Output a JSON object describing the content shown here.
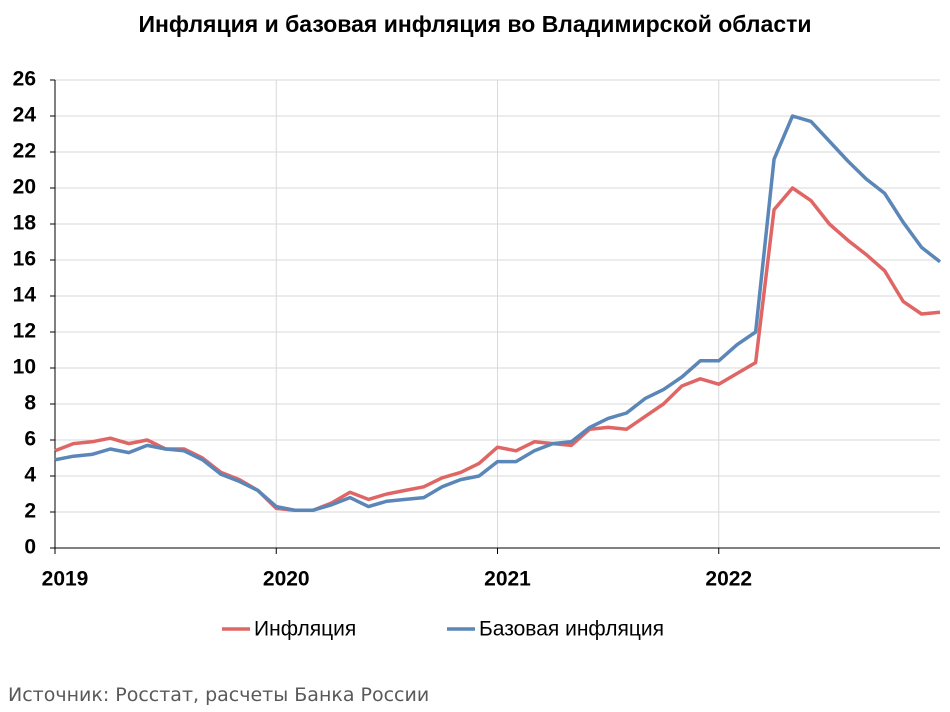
{
  "chart_data": {
    "type": "line",
    "title": "Инфляция и базовая инфляция во Владимирской области",
    "source": "Источник: Росстат, расчеты Банка России",
    "categories": [
      "2019",
      null,
      null,
      null,
      null,
      null,
      null,
      null,
      null,
      null,
      null,
      null,
      "2020",
      null,
      null,
      null,
      null,
      null,
      null,
      null,
      null,
      null,
      null,
      null,
      "2021",
      null,
      null,
      null,
      null,
      null,
      null,
      null,
      null,
      null,
      null,
      null,
      "2022",
      null,
      null,
      null,
      null,
      null,
      null,
      null,
      null,
      null,
      null,
      null,
      null
    ],
    "series": [
      {
        "name": "Инфляция",
        "color": "#e06666",
        "values": [
          5.4,
          5.8,
          5.9,
          6.1,
          5.8,
          6.0,
          5.5,
          5.5,
          5.0,
          4.2,
          3.8,
          3.2,
          2.2,
          2.1,
          2.1,
          2.5,
          3.1,
          2.7,
          3.0,
          3.2,
          3.4,
          3.9,
          4.2,
          4.7,
          5.6,
          5.4,
          5.9,
          5.8,
          5.7,
          6.6,
          6.7,
          6.6,
          7.3,
          8.0,
          9.0,
          9.4,
          9.1,
          9.7,
          10.3,
          18.8,
          20.0,
          19.3,
          18.0,
          17.1,
          16.3,
          15.4,
          13.7,
          13.0,
          13.1
        ]
      },
      {
        "name": "Базовая инфляция",
        "color": "#5b86b8",
        "values": [
          4.9,
          5.1,
          5.2,
          5.5,
          5.3,
          5.7,
          5.5,
          5.4,
          4.9,
          4.1,
          3.7,
          3.2,
          2.3,
          2.1,
          2.1,
          2.4,
          2.8,
          2.3,
          2.6,
          2.7,
          2.8,
          3.4,
          3.8,
          4.0,
          4.8,
          4.8,
          5.4,
          5.8,
          5.9,
          6.7,
          7.2,
          7.5,
          8.3,
          8.8,
          9.5,
          10.4,
          10.4,
          11.3,
          12.0,
          21.6,
          24.0,
          23.7,
          22.6,
          21.5,
          20.5,
          19.7,
          18.1,
          16.7,
          15.9
        ]
      }
    ],
    "ylim": [
      0,
      26
    ],
    "yticks": [
      0,
      2,
      4,
      6,
      8,
      10,
      12,
      14,
      16,
      18,
      20,
      22,
      24,
      26
    ],
    "grid": true
  }
}
